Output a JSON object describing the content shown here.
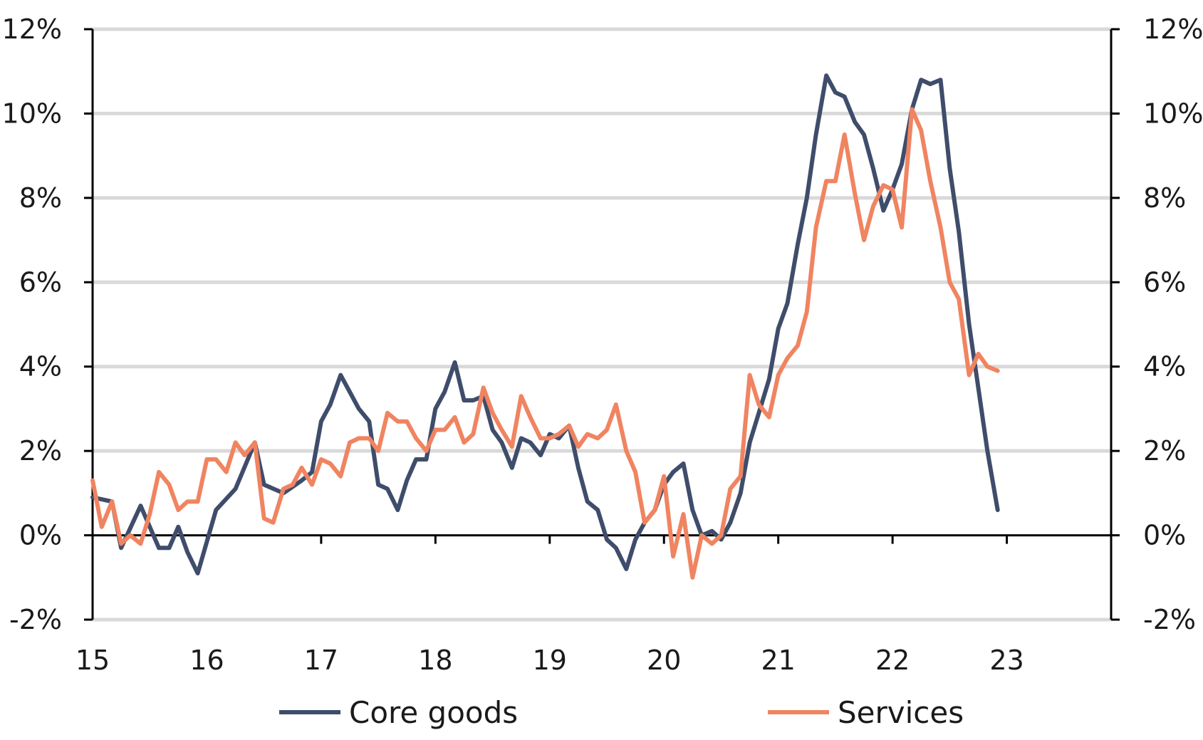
{
  "chart_data": {
    "type": "line",
    "title": "",
    "xlabel": "",
    "ylabel": "",
    "xlim": [
      15,
      23.95
    ],
    "ylim": [
      -2,
      12
    ],
    "x_ticks": [
      15,
      16,
      17,
      18,
      19,
      20,
      21,
      22,
      23
    ],
    "x_tick_labels": [
      "15",
      "16",
      "17",
      "18",
      "19",
      "20",
      "21",
      "22",
      "23"
    ],
    "y_ticks": [
      -2,
      0,
      2,
      4,
      6,
      8,
      10,
      12
    ],
    "y_tick_labels": [
      "-2%",
      "0%",
      "2%",
      "4%",
      "6%",
      "8%",
      "10%",
      "12%"
    ],
    "grid": "horizontal",
    "legend_position": "bottom",
    "colors": {
      "core_goods": "#3f4d6b",
      "services": "#f08461",
      "grid": "#d9d9d9",
      "axis": "#000000"
    },
    "series": [
      {
        "name": "Core goods",
        "key": "core_goods",
        "x": [
          15.0,
          15.17,
          15.25,
          15.42,
          15.58,
          15.67,
          15.75,
          15.83,
          15.92,
          16.08,
          16.25,
          16.42,
          16.5,
          16.67,
          16.83,
          16.92,
          17.0,
          17.08,
          17.17,
          17.25,
          17.33,
          17.42,
          17.5,
          17.58,
          17.67,
          17.75,
          17.83,
          17.92,
          18.0,
          18.08,
          18.17,
          18.25,
          18.33,
          18.42,
          18.5,
          18.58,
          18.67,
          18.75,
          18.83,
          18.92,
          19.0,
          19.08,
          19.17,
          19.25,
          19.33,
          19.42,
          19.5,
          19.58,
          19.67,
          19.75,
          19.83,
          19.92,
          20.0,
          20.08,
          20.17,
          20.25,
          20.33,
          20.42,
          20.5,
          20.58,
          20.67,
          20.75,
          20.83,
          20.92,
          21.0,
          21.08,
          21.17,
          21.25,
          21.33,
          21.42,
          21.5,
          21.58,
          21.67,
          21.75,
          21.83,
          21.92,
          22.0,
          22.08,
          22.17,
          22.25,
          22.33,
          22.42,
          22.5,
          22.58,
          22.67,
          22.75,
          22.83,
          22.92
        ],
        "values": [
          0.9,
          0.8,
          -0.3,
          0.7,
          -0.3,
          -0.3,
          0.2,
          -0.4,
          -0.9,
          0.6,
          1.1,
          2.2,
          1.2,
          1.0,
          1.3,
          1.5,
          2.7,
          3.1,
          3.8,
          3.4,
          3.0,
          2.7,
          1.2,
          1.1,
          0.6,
          1.3,
          1.8,
          1.8,
          3.0,
          3.4,
          4.1,
          3.2,
          3.2,
          3.3,
          2.5,
          2.2,
          1.6,
          2.3,
          2.2,
          1.9,
          2.4,
          2.3,
          2.6,
          1.6,
          0.8,
          0.6,
          -0.1,
          -0.3,
          -0.8,
          -0.1,
          0.3,
          0.6,
          1.2,
          1.5,
          1.7,
          0.6,
          0.0,
          0.1,
          -0.1,
          0.3,
          1.0,
          2.2,
          2.9,
          3.7,
          4.9,
          5.5,
          6.9,
          8.0,
          9.5,
          10.9,
          10.5,
          10.4,
          9.8,
          9.5,
          8.7,
          7.7,
          8.2,
          8.8,
          10.1,
          10.8,
          10.7,
          10.8,
          8.7,
          7.2,
          5.0,
          3.5,
          2.0,
          0.6
        ]
      },
      {
        "name": "Services",
        "key": "services",
        "x": [
          15.0,
          15.08,
          15.17,
          15.25,
          15.33,
          15.42,
          15.5,
          15.58,
          15.67,
          15.75,
          15.83,
          15.92,
          16.0,
          16.08,
          16.17,
          16.25,
          16.33,
          16.42,
          16.5,
          16.58,
          16.67,
          16.75,
          16.83,
          16.92,
          17.0,
          17.08,
          17.17,
          17.25,
          17.33,
          17.42,
          17.5,
          17.58,
          17.67,
          17.75,
          17.83,
          17.92,
          18.0,
          18.08,
          18.17,
          18.25,
          18.33,
          18.42,
          18.5,
          18.58,
          18.67,
          18.75,
          18.83,
          18.92,
          19.0,
          19.08,
          19.17,
          19.25,
          19.33,
          19.42,
          19.5,
          19.58,
          19.67,
          19.75,
          19.83,
          19.92,
          20.0,
          20.08,
          20.17,
          20.25,
          20.33,
          20.42,
          20.5,
          20.58,
          20.67,
          20.75,
          20.83,
          20.92,
          21.0,
          21.08,
          21.17,
          21.25,
          21.33,
          21.42,
          21.5,
          21.58,
          21.67,
          21.75,
          21.83,
          21.92,
          22.0,
          22.08,
          22.17,
          22.25,
          22.33,
          22.42,
          22.5,
          22.58,
          22.67,
          22.75,
          22.83,
          22.92
        ],
        "values": [
          1.3,
          0.2,
          0.8,
          -0.2,
          0.0,
          -0.2,
          0.5,
          1.5,
          1.2,
          0.6,
          0.8,
          0.8,
          1.8,
          1.8,
          1.5,
          2.2,
          1.9,
          2.2,
          0.4,
          0.3,
          1.1,
          1.2,
          1.6,
          1.2,
          1.8,
          1.7,
          1.4,
          2.2,
          2.3,
          2.3,
          2.0,
          2.9,
          2.7,
          2.7,
          2.3,
          2.0,
          2.5,
          2.5,
          2.8,
          2.2,
          2.4,
          3.5,
          2.9,
          2.5,
          2.1,
          3.3,
          2.8,
          2.3,
          2.3,
          2.4,
          2.6,
          2.1,
          2.4,
          2.3,
          2.5,
          3.1,
          2.0,
          1.5,
          0.3,
          0.6,
          1.4,
          -0.5,
          0.5,
          -1.0,
          0.0,
          -0.2,
          0.0,
          1.1,
          1.4,
          3.8,
          3.1,
          2.8,
          3.8,
          4.2,
          4.5,
          5.3,
          7.3,
          8.4,
          8.4,
          9.5,
          8.1,
          7.0,
          7.8,
          8.3,
          8.2,
          7.3,
          10.1,
          9.6,
          8.4,
          7.3,
          6.0,
          5.6,
          3.8,
          4.3,
          4.0,
          3.9
        ]
      }
    ]
  }
}
